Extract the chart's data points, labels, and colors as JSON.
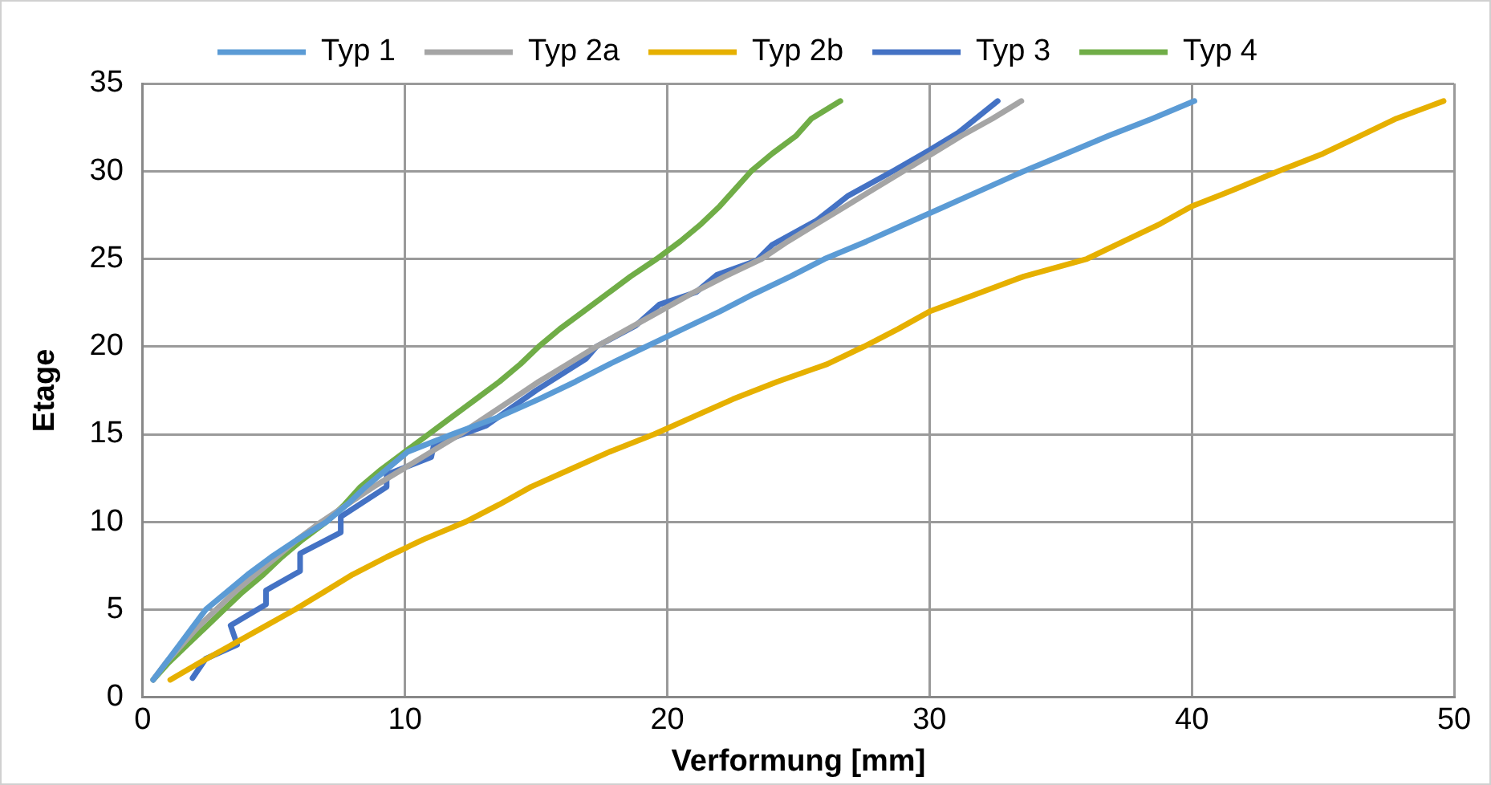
{
  "chart_data": {
    "type": "line",
    "xlabel": "Verformung [mm]",
    "ylabel": "Etage",
    "xlim": [
      0,
      50
    ],
    "xticks": [
      0,
      10,
      20,
      30,
      40,
      50
    ],
    "ylim": [
      0,
      35
    ],
    "yticks": [
      0,
      5,
      10,
      15,
      20,
      25,
      30,
      35
    ],
    "grid": true,
    "legend": "top",
    "marker": "none",
    "line_style": "solid",
    "series": [
      {
        "name": "Typ 1",
        "color": "#5b9bd5",
        "x": [
          0.4,
          0.9,
          1.4,
          1.9,
          2.4,
          3.2,
          4.0,
          4.9,
          5.9,
          7.0,
          7.8,
          8.5,
          9.3,
          10.1,
          11.8,
          13.6,
          15.1,
          16.5,
          17.8,
          19.2,
          20.6,
          22.0,
          23.3,
          24.7,
          26.0,
          27.6,
          29.1,
          30.6,
          32.1,
          33.6,
          35.2,
          36.8,
          38.5,
          40.1
        ],
        "values": [
          1,
          2,
          3,
          4,
          5,
          6,
          7,
          8,
          9,
          10,
          11,
          12,
          13,
          14,
          15,
          16,
          17,
          18,
          19,
          20,
          21,
          22,
          23,
          24,
          25,
          26,
          27,
          28,
          29,
          30,
          31,
          32,
          33,
          34
        ]
      },
      {
        "name": "Typ 2a",
        "color": "#a5a5a5",
        "x": [
          0.4,
          0.9,
          1.5,
          2.1,
          2.8,
          3.5,
          4.3,
          5.1,
          5.9,
          6.8,
          7.8,
          8.8,
          9.9,
          11.0,
          12.1,
          13.1,
          14.1,
          15.1,
          16.2,
          17.3,
          18.5,
          19.7,
          20.9,
          22.2,
          23.6,
          24.6,
          25.7,
          26.8,
          27.9,
          29.0,
          30.1,
          31.2,
          32.4,
          33.5
        ],
        "values": [
          1,
          2,
          3,
          4,
          5,
          6,
          7,
          8,
          9,
          10,
          11,
          12,
          13,
          14,
          15,
          16,
          17,
          18,
          19,
          20,
          21,
          22,
          23,
          24,
          25,
          26,
          27,
          28,
          29,
          30,
          31,
          32,
          33,
          34
        ]
      },
      {
        "name": "Typ 2b",
        "color": "#e6b000",
        "x": [
          1.05,
          2.2,
          3.4,
          4.6,
          5.8,
          6.9,
          8.0,
          9.3,
          10.7,
          12.3,
          13.6,
          14.8,
          16.3,
          17.8,
          19.5,
          21.0,
          22.5,
          24.2,
          26.1,
          27.5,
          28.8,
          30.0,
          31.8,
          33.6,
          36.0,
          37.4,
          38.8,
          40.0,
          41.7,
          43.3,
          45.0,
          46.4,
          47.8,
          49.6
        ],
        "values": [
          1,
          2,
          3,
          4,
          5,
          6,
          7,
          8,
          9,
          10,
          11,
          12,
          13,
          14,
          15,
          16,
          17,
          18,
          19,
          20,
          21,
          22,
          23,
          24,
          25,
          26,
          27,
          28,
          29,
          30,
          31,
          32,
          33,
          34
        ]
      },
      {
        "name": "Typ 3",
        "color": "#4472c4",
        "x": [
          1.9,
          2.4,
          3.6,
          3.35,
          4.7,
          4.7,
          6.0,
          6.0,
          7.55,
          7.55,
          9.3,
          9.3,
          11.0,
          11.1,
          13.1,
          15.0,
          16.9,
          17.3,
          18.8,
          19.7,
          21.1,
          21.9,
          23.4,
          24.0,
          25.7,
          26.9,
          28.6,
          30.0,
          31.1,
          32.6
        ],
        "values": [
          1.1,
          2.2,
          3.0,
          4.1,
          5.3,
          6.1,
          7.2,
          8.2,
          9.4,
          10.3,
          12.0,
          12.7,
          13.7,
          14.4,
          15.5,
          17.5,
          19.3,
          20.0,
          21.2,
          22.4,
          23.1,
          24.1,
          24.9,
          25.8,
          27.2,
          28.6,
          30.0,
          31.2,
          32.2,
          34.0
        ]
      },
      {
        "name": "Typ 4",
        "color": "#70ad47",
        "x": [
          0.4,
          1.0,
          1.7,
          2.4,
          3.1,
          3.8,
          4.6,
          5.3,
          6.1,
          7.0,
          7.7,
          8.3,
          9.1,
          10.0,
          10.9,
          11.8,
          12.7,
          13.6,
          14.4,
          15.1,
          15.9,
          16.8,
          17.7,
          18.6,
          19.6,
          20.5,
          21.3,
          22.0,
          22.6,
          23.2,
          24.0,
          24.9,
          25.5,
          26.6
        ],
        "values": [
          1,
          2,
          3,
          4,
          5,
          6,
          7,
          8,
          9,
          10,
          11,
          12,
          13,
          14,
          15,
          16,
          17,
          18,
          19,
          20,
          21,
          22,
          23,
          24,
          25,
          26,
          27,
          28,
          29,
          30,
          31,
          32,
          33,
          34
        ]
      }
    ]
  }
}
